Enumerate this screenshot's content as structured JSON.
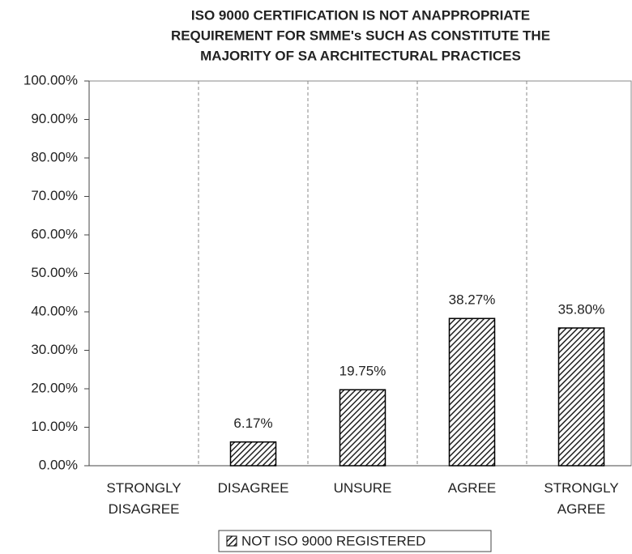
{
  "chart_data": {
    "type": "bar",
    "title": [
      "ISO 9000 CERTIFICATION IS NOT ANAPPROPRIATE",
      "REQUIREMENT  FOR SMME's SUCH AS CONSTITUTE THE",
      "MAJORITY OF SA ARCHITECTURAL PRACTICES"
    ],
    "categories": [
      "STRONGLY DISAGREE",
      "DISAGREE",
      "UNSURE",
      "AGREE",
      "STRONGLY AGREE"
    ],
    "series": [
      {
        "name": "NOT ISO 9000 REGISTERED",
        "color": "#000000",
        "values": [
          null,
          6.17,
          19.75,
          38.27,
          35.8
        ],
        "value_labels": [
          null,
          "6.17%",
          "19.75%",
          "38.27%",
          "35.80%"
        ]
      }
    ],
    "ylim": [
      0,
      100
    ],
    "yticks": [
      {
        "value": 0,
        "label": "0.00%"
      },
      {
        "value": 10,
        "label": "10.00%"
      },
      {
        "value": 20,
        "label": "20.00%"
      },
      {
        "value": 30,
        "label": "30.00%"
      },
      {
        "value": 40,
        "label": "40.00%"
      },
      {
        "value": 50,
        "label": "50.00%"
      },
      {
        "value": 60,
        "label": "60.00%"
      },
      {
        "value": 70,
        "label": "70.00%"
      },
      {
        "value": 80,
        "label": "80.00%"
      },
      {
        "value": 90,
        "label": "90.00%"
      },
      {
        "value": 100,
        "label": "100.00%"
      }
    ]
  }
}
